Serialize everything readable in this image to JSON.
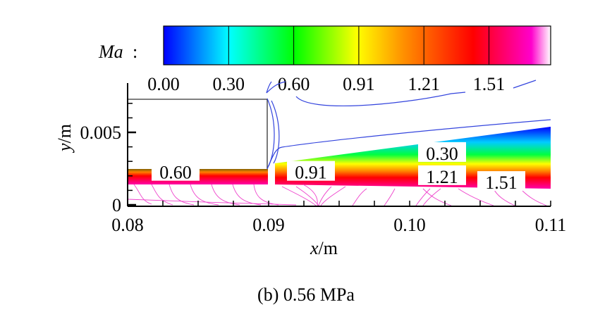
{
  "chart_data": {
    "type": "heatmap",
    "subtype": "contour",
    "title": "",
    "caption": "(b) 0.56 MPa",
    "variable_label": "Ma",
    "variable_suffix": ":",
    "colorbar": {
      "levels": [
        "0.00",
        "0.30",
        "0.60",
        "0.91",
        "1.21",
        "1.51"
      ],
      "range": [
        0.0,
        1.8
      ],
      "colors": [
        "#0000ff",
        "#00ffff",
        "#00ff00",
        "#ffff00",
        "#ff8000",
        "#ff0000",
        "#ff00cc",
        "#ffffff"
      ]
    },
    "xlabel_var": "x",
    "xlabel_unit": "/m",
    "ylabel_var": "y",
    "ylabel_unit": "/m",
    "xlim": [
      0.08,
      0.11
    ],
    "ylim": [
      0,
      0.0079
    ],
    "xticks": [
      0.08,
      0.09,
      0.1,
      0.11
    ],
    "xtick_labels": [
      "0.08",
      "0.09",
      "0.10",
      "0.11"
    ],
    "yticks": [
      0,
      0.005
    ],
    "ytick_labels": [
      "0",
      "0.005"
    ],
    "contour_labels": [
      {
        "text": "0.60",
        "x": 0.0834,
        "y": 0.0022
      },
      {
        "text": "0.91",
        "x": 0.093,
        "y": 0.0022
      },
      {
        "text": "0.30",
        "x": 0.1023,
        "y": 0.0035
      },
      {
        "text": "1.21",
        "x": 0.1023,
        "y": 0.0019
      },
      {
        "text": "1.51",
        "x": 0.1065,
        "y": 0.0015
      }
    ],
    "nozzle_exit_x": 0.0899,
    "nozzle_wall_y": [
      0.0022,
      0.0074
    ]
  }
}
